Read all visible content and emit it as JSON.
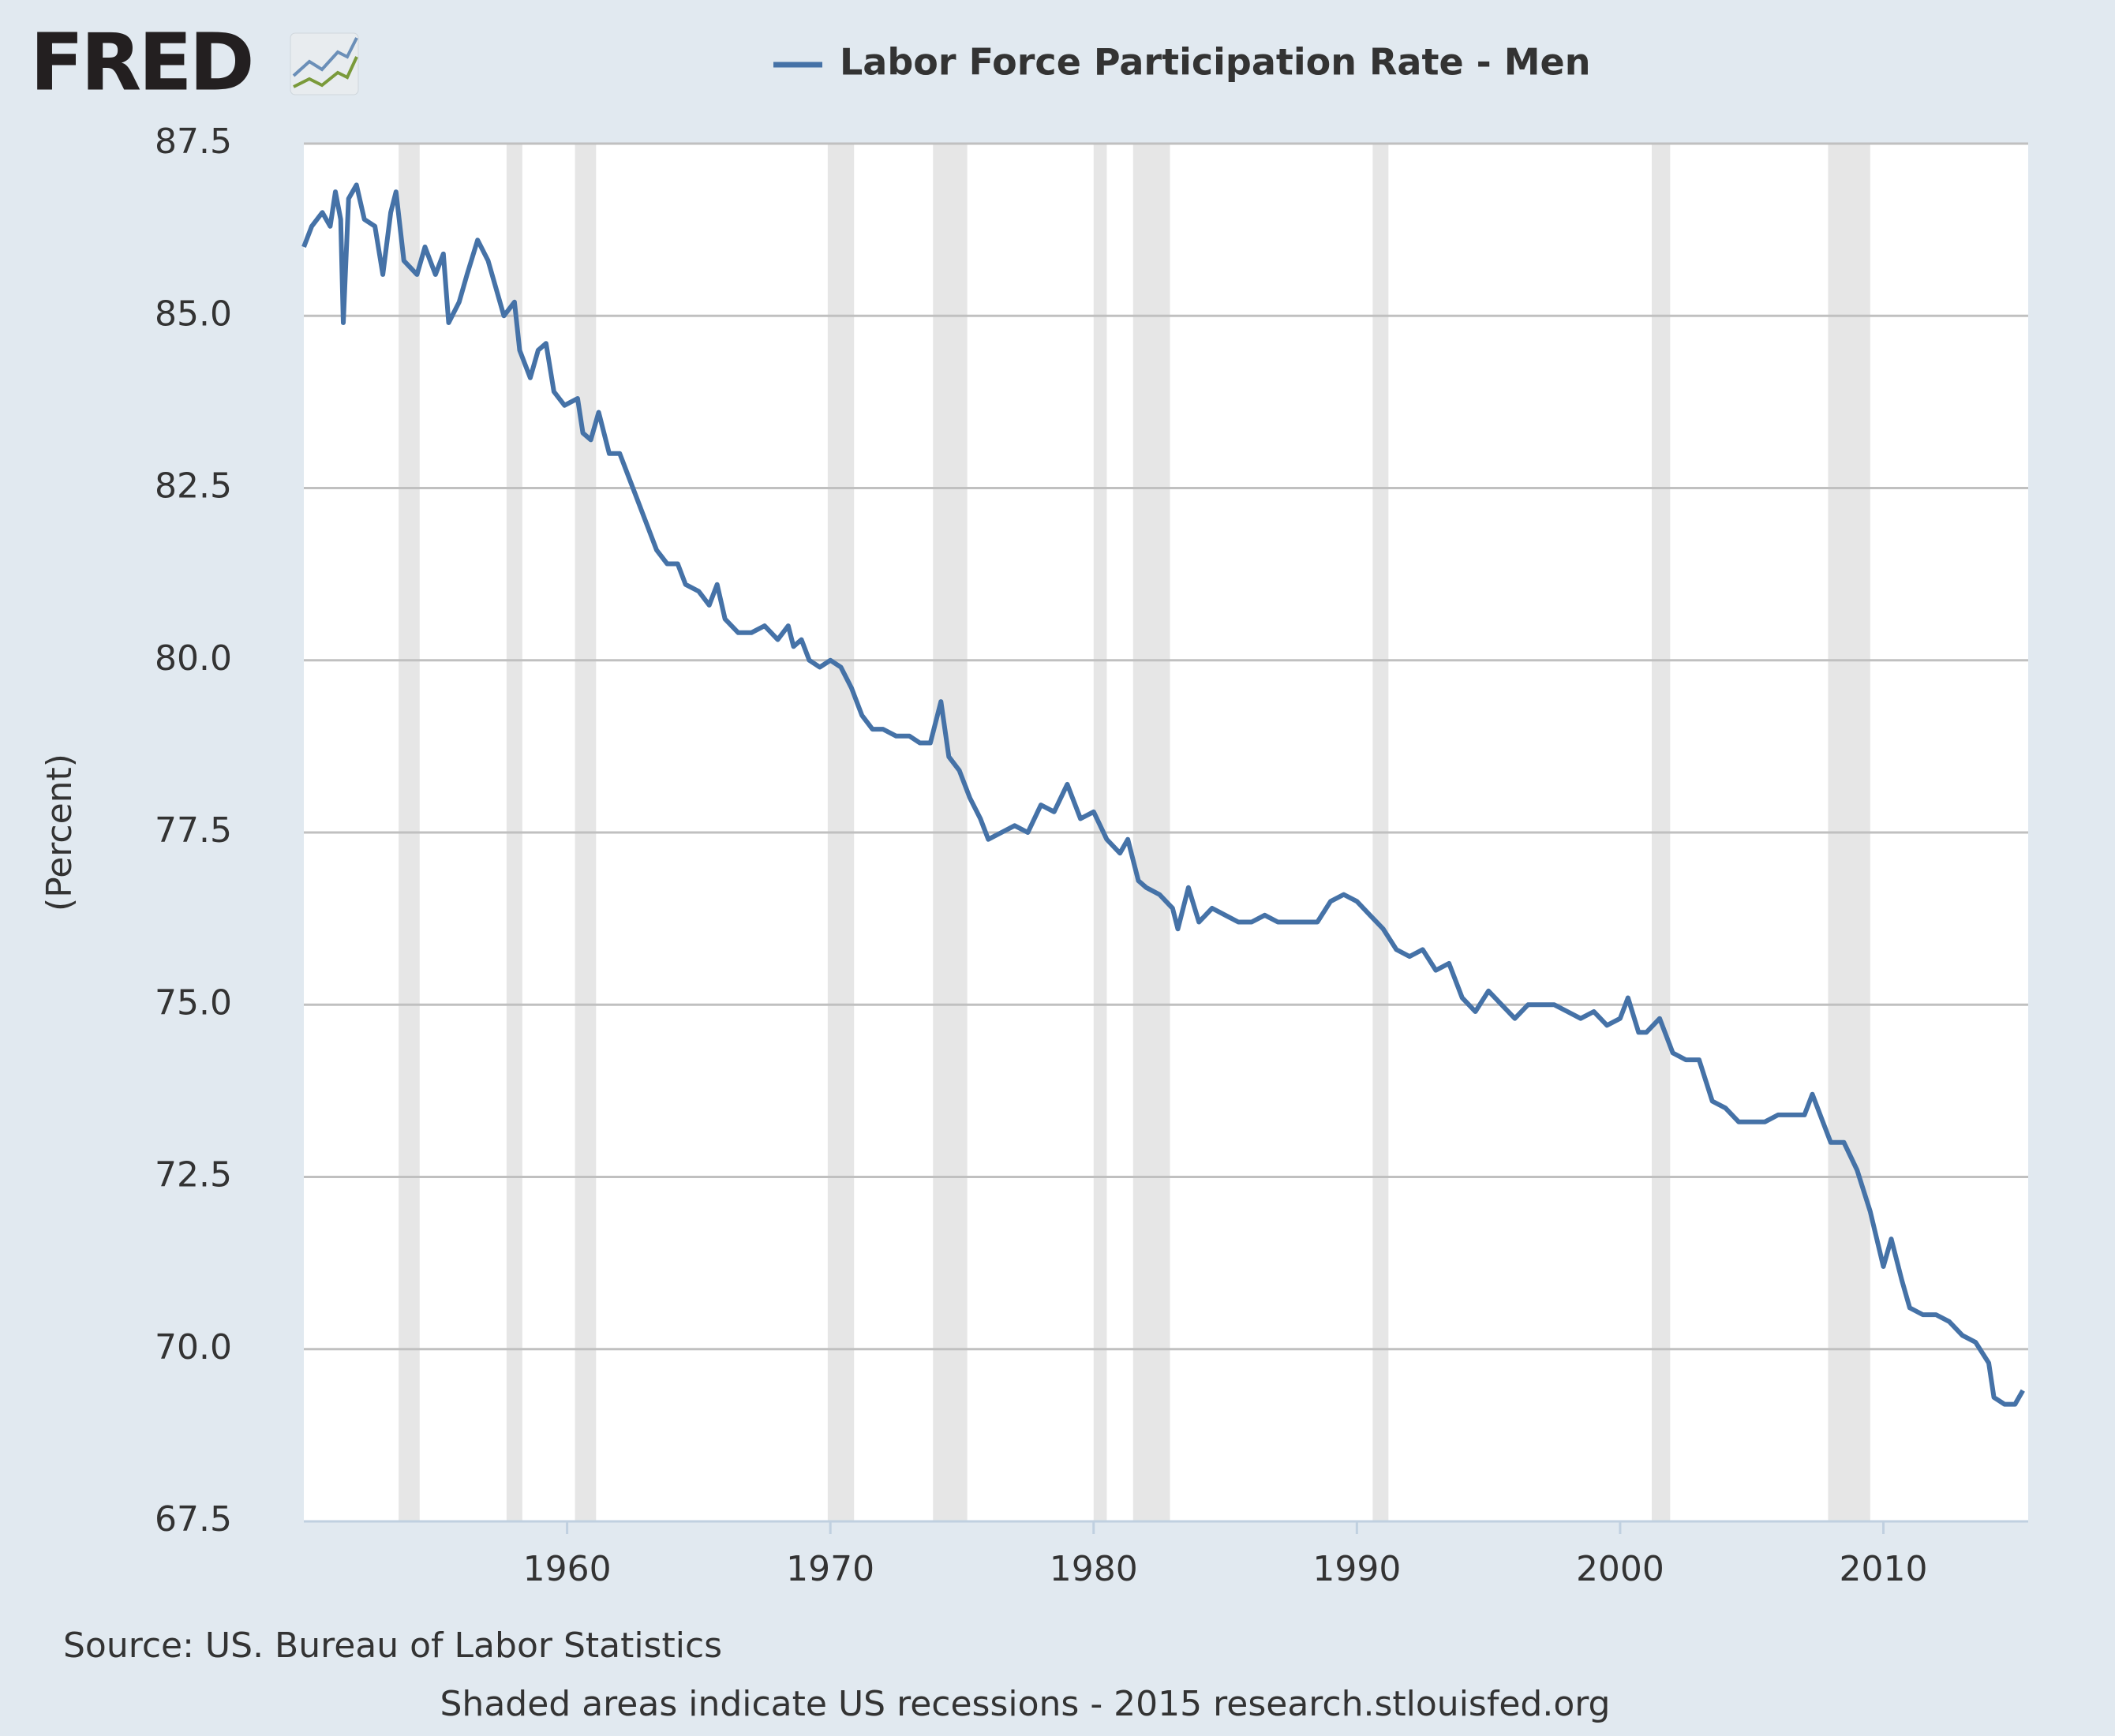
{
  "logo": "FRED",
  "chart_data": {
    "type": "line",
    "y_label": "(Percent)",
    "source": "Source: US. Bureau of Labor Statistics",
    "footer": "Shaded areas indicate US recessions - 2015 research.stlouisfed.org",
    "xlim": [
      1950,
      2015.5
    ],
    "xticks": [
      1960,
      1970,
      1980,
      1990,
      2000,
      2010
    ],
    "ylim": [
      67.5,
      87.5
    ],
    "yticks": [
      {
        "value": 67.5,
        "label": "67.5"
      },
      {
        "value": 70,
        "label": "70.0"
      },
      {
        "value": 72.5,
        "label": "72.5"
      },
      {
        "value": 75,
        "label": "75.0"
      },
      {
        "value": 77.5,
        "label": "77.5"
      },
      {
        "value": 80,
        "label": "80.0"
      },
      {
        "value": 82.5,
        "label": "82.5"
      },
      {
        "value": 85,
        "label": "85.0"
      },
      {
        "value": 87.5,
        "label": "87.5"
      }
    ],
    "grid": true,
    "recession_color": "#e6e6e6",
    "recessions": [
      [
        1953.6,
        1954.4
      ],
      [
        1957.7,
        1958.3
      ],
      [
        1960.3,
        1961.1
      ],
      [
        1969.9,
        1970.9
      ],
      [
        1973.9,
        1975.2
      ],
      [
        1980.0,
        1980.5
      ],
      [
        1981.5,
        1982.9
      ],
      [
        1990.6,
        1991.2
      ],
      [
        2001.2,
        2001.9
      ],
      [
        2007.9,
        2009.5
      ]
    ],
    "series": [
      {
        "name": "Labor Force Participation Rate - Men",
        "color": "#4572a7",
        "x": [
          1950.0,
          1950.3,
          1950.7,
          1951.0,
          1951.2,
          1951.4,
          1951.5,
          1951.7,
          1952.0,
          1952.3,
          1952.7,
          1953.0,
          1953.3,
          1953.5,
          1953.8,
          1954.3,
          1954.6,
          1955.0,
          1955.3,
          1955.5,
          1955.9,
          1956.2,
          1956.6,
          1957.0,
          1957.3,
          1957.6,
          1958.0,
          1958.2,
          1958.6,
          1958.9,
          1959.2,
          1959.5,
          1959.9,
          1960.4,
          1960.6,
          1960.9,
          1961.2,
          1961.6,
          1962.0,
          1962.3,
          1962.7,
          1963.0,
          1963.4,
          1963.8,
          1964.2,
          1964.5,
          1965.0,
          1965.4,
          1965.7,
          1966.0,
          1966.5,
          1967.0,
          1967.5,
          1968.0,
          1968.4,
          1968.6,
          1968.9,
          1969.2,
          1969.6,
          1970.0,
          1970.4,
          1970.8,
          1971.2,
          1971.6,
          1972.0,
          1972.5,
          1973.0,
          1973.4,
          1973.8,
          1974.2,
          1974.5,
          1974.9,
          1975.3,
          1975.7,
          1976.0,
          1976.5,
          1977.0,
          1977.5,
          1978.0,
          1978.5,
          1979.0,
          1979.5,
          1980.0,
          1980.5,
          1981.0,
          1981.3,
          1981.7,
          1982.0,
          1982.5,
          1983.0,
          1983.2,
          1983.6,
          1984.0,
          1984.5,
          1985.0,
          1985.5,
          1986.0,
          1986.5,
          1987.0,
          1987.5,
          1988.0,
          1988.5,
          1989.0,
          1989.5,
          1990.0,
          1990.5,
          1991.0,
          1991.5,
          1992.0,
          1992.5,
          1993.0,
          1993.5,
          1994.0,
          1994.5,
          1995.0,
          1995.5,
          1996.0,
          1996.5,
          1997.0,
          1997.5,
          1998.0,
          1998.5,
          1999.0,
          1999.5,
          2000.0,
          2000.3,
          2000.7,
          2001.0,
          2001.5,
          2002.0,
          2002.5,
          2003.0,
          2003.5,
          2004.0,
          2004.5,
          2005.0,
          2005.5,
          2006.0,
          2006.5,
          2007.0,
          2007.3,
          2007.7,
          2008.0,
          2008.5,
          2009.0,
          2009.5,
          2010.0,
          2010.3,
          2010.7,
          2011.0,
          2011.5,
          2012.0,
          2012.5,
          2013.0,
          2013.5,
          2014.0,
          2014.2,
          2014.6,
          2015.0,
          2015.3
        ],
        "values": [
          86.0,
          86.3,
          86.5,
          86.3,
          86.8,
          86.4,
          84.9,
          86.7,
          86.9,
          86.4,
          86.3,
          85.6,
          86.5,
          86.8,
          85.8,
          85.6,
          86.0,
          85.6,
          85.9,
          84.9,
          85.2,
          85.6,
          86.1,
          85.8,
          85.4,
          85.0,
          85.2,
          84.5,
          84.1,
          84.5,
          84.6,
          83.9,
          83.7,
          83.8,
          83.3,
          83.2,
          83.6,
          83.0,
          83.0,
          82.7,
          82.3,
          82.0,
          81.6,
          81.4,
          81.4,
          81.1,
          81.0,
          80.8,
          81.1,
          80.6,
          80.4,
          80.4,
          80.5,
          80.3,
          80.5,
          80.2,
          80.3,
          80.0,
          79.9,
          80.0,
          79.9,
          79.6,
          79.2,
          79.0,
          79.0,
          78.9,
          78.9,
          78.8,
          78.8,
          79.4,
          78.6,
          78.4,
          78.0,
          77.7,
          77.4,
          77.5,
          77.6,
          77.5,
          77.9,
          77.8,
          78.2,
          77.7,
          77.8,
          77.4,
          77.2,
          77.4,
          76.8,
          76.7,
          76.6,
          76.4,
          76.1,
          76.7,
          76.2,
          76.4,
          76.3,
          76.2,
          76.2,
          76.3,
          76.2,
          76.2,
          76.2,
          76.2,
          76.5,
          76.6,
          76.5,
          76.3,
          76.1,
          75.8,
          75.7,
          75.8,
          75.5,
          75.6,
          75.1,
          74.9,
          75.2,
          75.0,
          74.8,
          75.0,
          75.0,
          75.0,
          74.9,
          74.8,
          74.9,
          74.7,
          74.8,
          75.1,
          74.6,
          74.6,
          74.8,
          74.3,
          74.2,
          74.2,
          73.6,
          73.5,
          73.3,
          73.3,
          73.3,
          73.4,
          73.4,
          73.4,
          73.7,
          73.3,
          73.0,
          73.0,
          72.6,
          72.0,
          71.2,
          71.6,
          71.0,
          70.6,
          70.5,
          70.5,
          70.4,
          70.2,
          70.1,
          69.8,
          69.3,
          69.2,
          69.2,
          69.4
        ]
      }
    ]
  }
}
